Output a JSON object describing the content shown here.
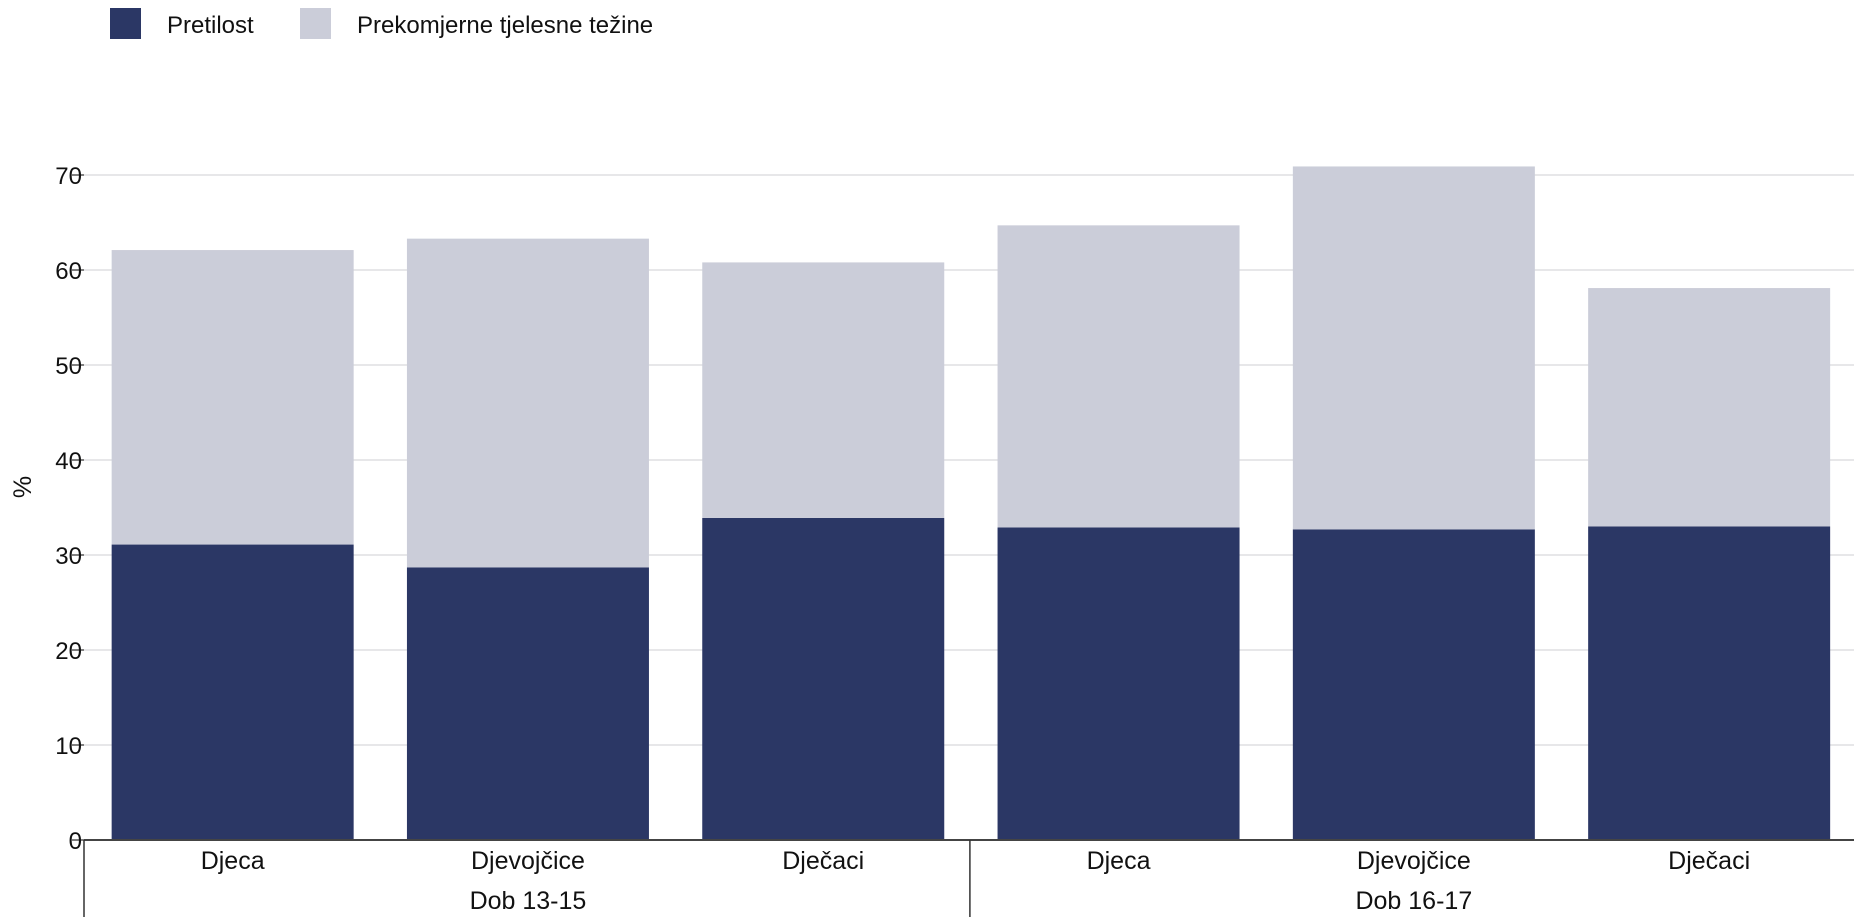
{
  "chart_data": {
    "type": "bar",
    "stacked": true,
    "ylabel": "%",
    "ylim": [
      0,
      70
    ],
    "yticks": [
      0,
      10,
      20,
      30,
      40,
      50,
      60,
      70
    ],
    "grid": true,
    "legend_position": "top-left",
    "categories": [
      "Djeca",
      "Djevojčice",
      "Dječaci",
      "Djeca",
      "Djevojčice",
      "Dječaci"
    ],
    "groups": [
      {
        "label": "Dob 13-15",
        "categories": [
          0,
          1,
          2
        ]
      },
      {
        "label": "Dob 16-17",
        "categories": [
          3,
          4,
          5
        ]
      }
    ],
    "series": [
      {
        "name": "Pretilost",
        "color": "#2b3765",
        "values": [
          31.1,
          28.7,
          33.9,
          32.9,
          32.7,
          33.0
        ]
      },
      {
        "name": "Prekomjerne tjelesne težine",
        "color": "#cbcdd9",
        "values": [
          31.0,
          34.6,
          26.9,
          31.8,
          38.2,
          25.1
        ]
      }
    ]
  }
}
